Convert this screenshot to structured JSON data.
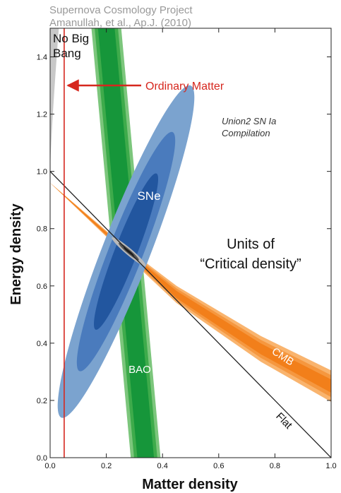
{
  "chart_data": {
    "type": "scatter",
    "title": "Supernova Cosmology Project",
    "subtitle": "Amanullah, et al., Ap.J. (2010)",
    "xlabel": "Matter density",
    "ylabel": "Energy density",
    "xlim": [
      0.0,
      1.0
    ],
    "ylim": [
      0.0,
      1.5
    ],
    "xticks": [
      "0.0",
      "0.2",
      "0.4",
      "0.6",
      "0.8",
      "1.0"
    ],
    "yticks": [
      "0.0",
      "0.2",
      "0.4",
      "0.6",
      "0.8",
      "1.0",
      "1.2",
      "1.4"
    ],
    "grid": false,
    "compilation_label": "Union2 SN Ia Compilation",
    "compilation_lines": [
      "Union2 SN Ia",
      "Compilation"
    ],
    "region_label_lines": [
      "No Big",
      "Bang"
    ],
    "annotation_lines": [
      "Units of",
      "“Critical density”"
    ],
    "ordinary_matter": {
      "label": "Ordinary Matter",
      "x": 0.05
    },
    "flat_line": {
      "label": "Flat",
      "points": [
        [
          0.0,
          1.0
        ],
        [
          1.0,
          0.0
        ]
      ]
    },
    "series": [
      {
        "name": "SNe",
        "label": "SNe",
        "center": [
          0.27,
          0.72
        ],
        "axis_end": [
          0.5,
          1.3
        ],
        "half_width": 0.085,
        "scales": [
          1.0,
          0.72,
          0.47
        ]
      },
      {
        "name": "BAO",
        "label": "BAO",
        "top": [
          0.2,
          1.5
        ],
        "bottom": [
          0.34,
          0.0
        ],
        "half_width": 0.053,
        "scales": [
          1.0,
          0.78,
          0.56
        ]
      },
      {
        "name": "CMB",
        "label": "CMB",
        "points": [
          [
            0.0,
            0.96
          ],
          [
            0.27,
            0.72
          ],
          [
            0.45,
            0.57
          ],
          [
            0.75,
            0.38
          ],
          [
            1.0,
            0.25
          ]
        ],
        "half_widths": [
          0.0,
          0.014,
          0.03,
          0.045,
          0.055
        ],
        "scales": [
          1.0,
          0.7,
          0.42
        ]
      },
      {
        "name": "Combined",
        "center": [
          0.28,
          0.72
        ],
        "axis_end": [
          0.34,
          0.67
        ],
        "half_width": 0.012
      }
    ],
    "colors": {
      "sne": [
        "#7ba3cf",
        "#4a7bbd",
        "#22569f"
      ],
      "bao": [
        "#7cc67c",
        "#3eab4b",
        "#16963a"
      ],
      "cmb": [
        "#f9b46e",
        "#f5973f",
        "#f27f1a"
      ],
      "no_big_bang": "#c8c8c8",
      "ordinary_matter": "#d6271e",
      "title": "#999999",
      "frame": "#222222"
    }
  }
}
